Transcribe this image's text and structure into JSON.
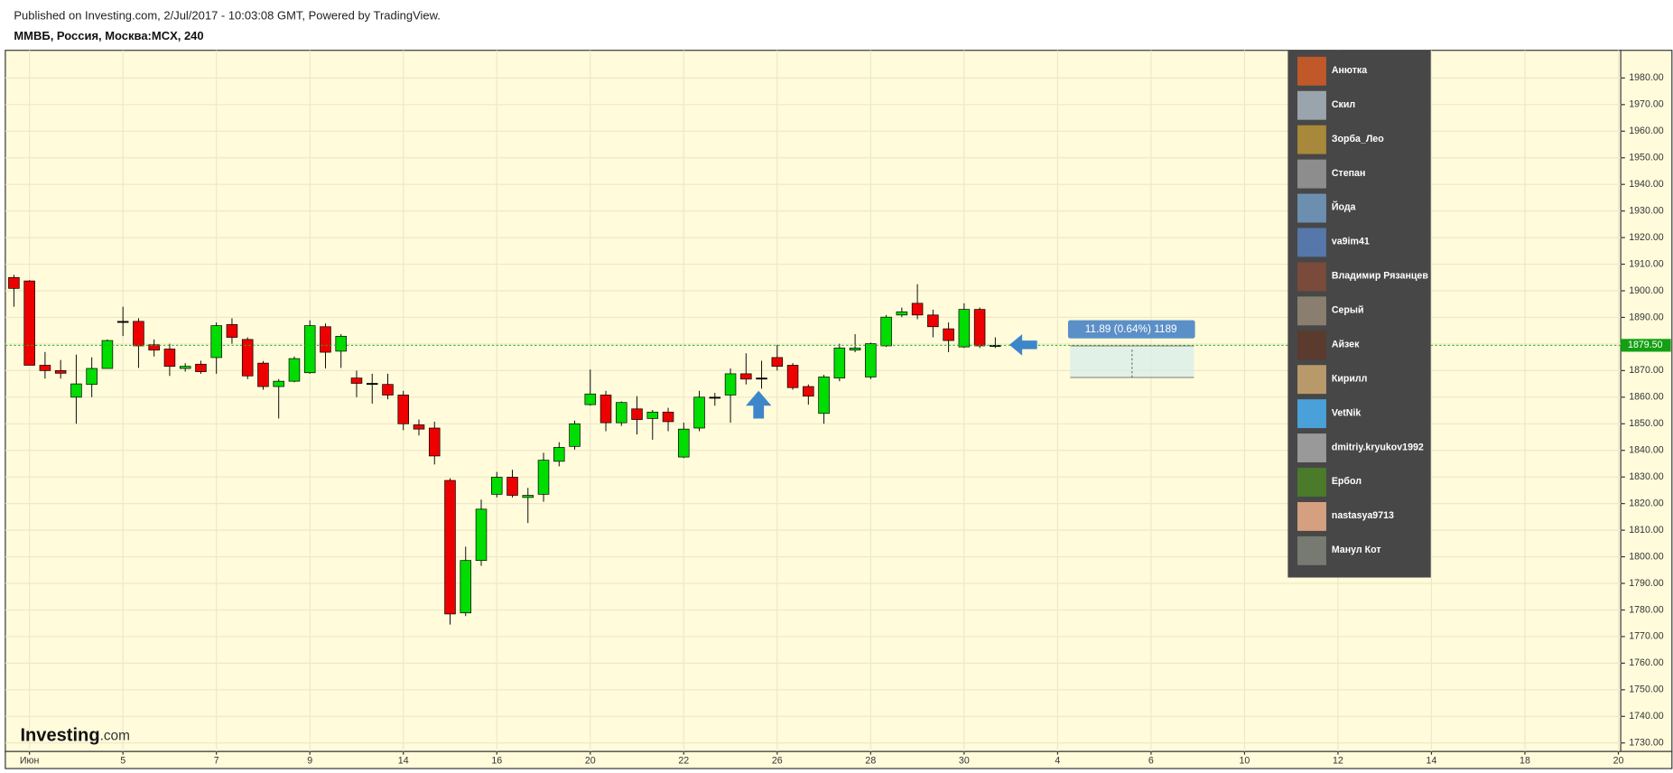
{
  "header": {
    "published": "Published on Investing.com, 2/Jul/2017 - 10:03:08 GMT, Powered by TradingView.",
    "symbol": "ММВБ, Россия, Москва:MCX, 240",
    "logo": "Investing",
    "logo_suffix": ".com"
  },
  "chart_data": {
    "type": "candlestick",
    "open": [
      1905,
      1903.7,
      1872,
      1870,
      1860,
      1864.8,
      1870.8,
      1888.5,
      1888.5,
      1879.7,
      1878.1,
      1870.8,
      1872.4,
      1874.9,
      1887.3,
      1881.7,
      1872.8,
      1864,
      1866,
      1869.2,
      1886.5,
      1877.3,
      1867.2,
      1865.2,
      1864.8,
      1860.8,
      1849.6,
      1848.4,
      1828.7,
      1778.9,
      1798.6,
      1823.5,
      1829.9,
      1822.3,
      1823.5,
      1835.9,
      1841.5,
      1857.2,
      1860.8,
      1850.4,
      1855.6,
      1852,
      1854.4,
      1837.5,
      1848.4,
      1860,
      1860.8,
      1868.8,
      1867.2,
      1874.9,
      1872,
      1864,
      1853.9,
      1867.2,
      1877.7,
      1867.6,
      1879.3,
      1890.9,
      1895.3,
      1890.9,
      1885.7,
      1878.9,
      1893,
      1879.5
    ],
    "high": [
      1906,
      1904,
      1877,
      1874,
      1876,
      1875,
      1881.7,
      1894,
      1889.7,
      1881.7,
      1880.1,
      1872.8,
      1873.7,
      1888.1,
      1889.7,
      1882.5,
      1873.6,
      1866.8,
      1875.3,
      1888.9,
      1887.7,
      1883.7,
      1870,
      1868.8,
      1868.8,
      1862.4,
      1851.6,
      1850.8,
      1829.5,
      1803.8,
      1821.5,
      1831.9,
      1832.7,
      1825.9,
      1839.1,
      1843.1,
      1851.2,
      1870.4,
      1862.4,
      1858.4,
      1860.4,
      1855.2,
      1856,
      1850.4,
      1862.4,
      1861.6,
      1870.8,
      1876.5,
      1873.7,
      1879.7,
      1872.8,
      1864.8,
      1868.4,
      1880.1,
      1883.7,
      1880.5,
      1890.9,
      1893.7,
      1902.5,
      1892.9,
      1888.1,
      1895.3,
      1893.7,
      1882.5
    ],
    "low": [
      1894,
      1872,
      1867,
      1867,
      1850,
      1860,
      1870.8,
      1883,
      1871,
      1875.3,
      1868,
      1869.6,
      1868.8,
      1868.8,
      1880.1,
      1866.8,
      1862.8,
      1852,
      1865.6,
      1868.8,
      1870.8,
      1871,
      1860,
      1857.6,
      1859.2,
      1847.6,
      1845.6,
      1834.7,
      1774.5,
      1777.7,
      1796.6,
      1822.3,
      1822.3,
      1812.7,
      1820.7,
      1834,
      1840.3,
      1856.8,
      1847.2,
      1849.2,
      1846,
      1844,
      1847.2,
      1837.1,
      1847.2,
      1856.8,
      1850.4,
      1864.8,
      1863.2,
      1870,
      1862.8,
      1857.2,
      1850,
      1866,
      1876.9,
      1866.8,
      1878.9,
      1890.1,
      1889.3,
      1882.5,
      1876.9,
      1878.5,
      1878.5,
      1878.5
    ],
    "close": [
      1900.9,
      1872,
      1870,
      1869,
      1865,
      1870.8,
      1881.3,
      1888.5,
      1879.3,
      1877.7,
      1871.6,
      1871.6,
      1869.6,
      1886.9,
      1882.5,
      1868,
      1864,
      1866,
      1874.5,
      1886.9,
      1876.9,
      1882.9,
      1865.2,
      1865.2,
      1860.8,
      1850,
      1848,
      1837.9,
      1778.5,
      1798.6,
      1817.9,
      1829.9,
      1823.1,
      1823.1,
      1836.3,
      1841.1,
      1850,
      1861.2,
      1850.4,
      1858,
      1851.6,
      1854.4,
      1850.8,
      1848,
      1860,
      1860,
      1868.8,
      1866.8,
      1867.2,
      1871.6,
      1863.6,
      1860.4,
      1867.6,
      1878.5,
      1878.5,
      1880.1,
      1890.1,
      1892.1,
      1890.9,
      1886.5,
      1881.3,
      1893,
      1879.3,
      1879.5
    ],
    "up_color": "#00dd00",
    "down_color": "#ee0000",
    "xlim": [
      -0.55,
      103.15
    ],
    "xticks": [
      {
        "value": 1,
        "label": "Июн"
      },
      {
        "value": 7,
        "label": "5"
      },
      {
        "value": 13,
        "label": "7"
      },
      {
        "value": 19,
        "label": "9"
      },
      {
        "value": 25,
        "label": "14"
      },
      {
        "value": 31,
        "label": "16"
      },
      {
        "value": 37,
        "label": "20"
      },
      {
        "value": 43,
        "label": "22"
      },
      {
        "value": 49,
        "label": "26"
      },
      {
        "value": 55,
        "label": "28"
      },
      {
        "value": 61,
        "label": "30"
      },
      {
        "value": 67,
        "label": "4"
      },
      {
        "value": 73,
        "label": "6"
      },
      {
        "value": 79,
        "label": "10"
      },
      {
        "value": 85,
        "label": "12"
      },
      {
        "value": 91,
        "label": "14"
      },
      {
        "value": 97,
        "label": "18"
      },
      {
        "value": 103,
        "label": "20"
      }
    ],
    "ylim": [
      1726.8,
      1990.4
    ],
    "yticks": [
      {
        "value": 1730,
        "label": "1730.00"
      },
      {
        "value": 1740,
        "label": "1740.00"
      },
      {
        "value": 1750,
        "label": "1750.00"
      },
      {
        "value": 1760,
        "label": "1760.00"
      },
      {
        "value": 1770,
        "label": "1770.00"
      },
      {
        "value": 1780,
        "label": "1780.00"
      },
      {
        "value": 1790,
        "label": "1790.00"
      },
      {
        "value": 1800,
        "label": "1800.00"
      },
      {
        "value": 1810,
        "label": "1810.00"
      },
      {
        "value": 1820,
        "label": "1820.00"
      },
      {
        "value": 1830,
        "label": "1830.00"
      },
      {
        "value": 1840,
        "label": "1840.00"
      },
      {
        "value": 1850,
        "label": "1850.00"
      },
      {
        "value": 1860,
        "label": "1860.00"
      },
      {
        "value": 1870,
        "label": "1870.00"
      },
      {
        "value": 1880,
        "label": "1880.00"
      },
      {
        "value": 1890,
        "label": "1890.00"
      },
      {
        "value": 1900,
        "label": "1900.00"
      },
      {
        "value": 1910,
        "label": "1910.00"
      },
      {
        "value": 1920,
        "label": "1920.00"
      },
      {
        "value": 1930,
        "label": "1930.00"
      },
      {
        "value": 1940,
        "label": "1940.00"
      },
      {
        "value": 1950,
        "label": "1950.00"
      },
      {
        "value": 1960,
        "label": "1960.00"
      },
      {
        "value": 1970,
        "label": "1970.00"
      },
      {
        "value": 1980,
        "label": "1980.00"
      }
    ],
    "grid": true,
    "last_price": {
      "value": 1879.5,
      "label": "1879.50"
    },
    "measure": {
      "label": "11.89 (0.64%) 1189",
      "low": 1867.4,
      "high": 1879.3
    }
  },
  "users": [
    "Анютка",
    "Скил",
    "Зорба_Лео",
    "Степан",
    "Йода",
    "va9im41",
    "Владимир Рязанцев",
    "Серый",
    "Айзек",
    "Кирилл",
    "VetNik",
    "dmitriy.kryukov1992",
    "Ербол",
    "nastasya9713",
    "Манул Кот"
  ]
}
